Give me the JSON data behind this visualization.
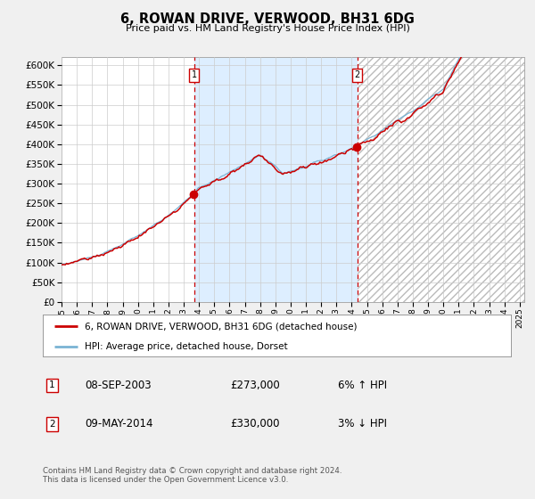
{
  "title": "6, ROWAN DRIVE, VERWOOD, BH31 6DG",
  "subtitle": "Price paid vs. HM Land Registry's House Price Index (HPI)",
  "legend_line1": "6, ROWAN DRIVE, VERWOOD, BH31 6DG (detached house)",
  "legend_line2": "HPI: Average price, detached house, Dorset",
  "sale1_date": "08-SEP-2003",
  "sale1_price": 273000,
  "sale1_pct": "6% ↑ HPI",
  "sale2_date": "09-MAY-2014",
  "sale2_price": 330000,
  "sale2_pct": "3% ↓ HPI",
  "footnote": "Contains HM Land Registry data © Crown copyright and database right 2024.\nThis data is licensed under the Open Government Licence v3.0.",
  "hpi_color": "#7ab3d4",
  "price_color": "#cc0000",
  "dot_color": "#cc0000",
  "vline_color": "#cc0000",
  "shade_color": "#ddeeff",
  "background_color": "#f0f0f0",
  "plot_bg_color": "#ffffff",
  "grid_color": "#cccccc",
  "hatch_color": "#bbbbbb",
  "ylim": [
    0,
    620000
  ],
  "yticks": [
    0,
    50000,
    100000,
    150000,
    200000,
    250000,
    300000,
    350000,
    400000,
    450000,
    500000,
    550000,
    600000
  ],
  "x_start_year": 1995,
  "x_end_year": 2025,
  "sale1_year": 2003.69,
  "sale2_year": 2014.36
}
